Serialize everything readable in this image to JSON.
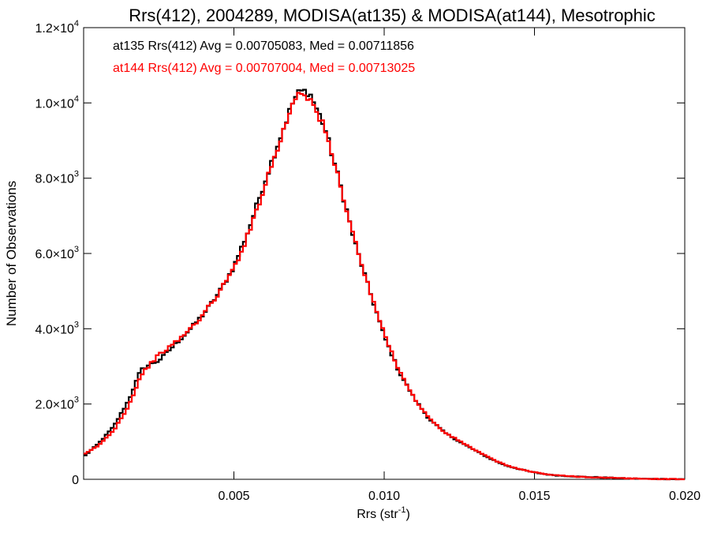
{
  "chart_data": {
    "type": "line",
    "title": "Rrs(412), 2004289, MODISA(at135) & MODISA(at144), Mesotrophic",
    "xlabel": "Rrs (str",
    "xlabel_sup": "-1",
    "xlabel_end": ")",
    "ylabel": "Number of Observations",
    "xlim": [
      0.0,
      0.02
    ],
    "ylim": [
      0,
      12000
    ],
    "grid": false,
    "x_ticks": [
      {
        "value": 0.005,
        "label": "0.005"
      },
      {
        "value": 0.01,
        "label": "0.010"
      },
      {
        "value": 0.015,
        "label": "0.015"
      },
      {
        "value": 0.02,
        "label": "0.020"
      }
    ],
    "y_ticks": [
      {
        "value": 0,
        "mant": "0",
        "exp": ""
      },
      {
        "value": 2000,
        "mant": "2.0×10",
        "exp": "3"
      },
      {
        "value": 4000,
        "mant": "4.0×10",
        "exp": "3"
      },
      {
        "value": 6000,
        "mant": "6.0×10",
        "exp": "3"
      },
      {
        "value": 8000,
        "mant": "8.0×10",
        "exp": "3"
      },
      {
        "value": 10000,
        "mant": "1.0×10",
        "exp": "4"
      },
      {
        "value": 12000,
        "mant": "1.2×10",
        "exp": "4"
      }
    ],
    "annotations": [
      {
        "text": "at135 Rrs(412) Avg = 0.00705083, Med = 0.00711856",
        "color": "#000000"
      },
      {
        "text": "at144 Rrs(412) Avg = 0.00707004, Med = 0.00713025",
        "color": "#ff0000"
      }
    ],
    "series": [
      {
        "color": "#000000",
        "style": "histogram-step",
        "x": [
          0.0,
          0.0005,
          0.001,
          0.0015,
          0.0019,
          0.0022,
          0.0025,
          0.003,
          0.0035,
          0.004,
          0.0045,
          0.005,
          0.0055,
          0.006,
          0.0065,
          0.007,
          0.0072,
          0.0075,
          0.008,
          0.0085,
          0.009,
          0.0095,
          0.01,
          0.0105,
          0.011,
          0.0115,
          0.012,
          0.0125,
          0.013,
          0.0135,
          0.014,
          0.0145,
          0.015,
          0.0155,
          0.016,
          0.0165,
          0.017,
          0.0175,
          0.018,
          0.0185,
          0.019,
          0.0195,
          0.02
        ],
        "y": [
          600,
          950,
          1400,
          2100,
          2900,
          3050,
          3150,
          3550,
          3950,
          4400,
          4950,
          5650,
          6650,
          7850,
          9000,
          10100,
          10300,
          10300,
          9400,
          7950,
          6350,
          5050,
          3800,
          2850,
          2150,
          1600,
          1250,
          1000,
          780,
          560,
          380,
          270,
          180,
          120,
          90,
          70,
          55,
          40,
          25,
          15,
          10,
          5,
          0
        ]
      },
      {
        "color": "#ff0000",
        "style": "histogram-step",
        "x": [
          0.0,
          0.0005,
          0.001,
          0.0015,
          0.0019,
          0.0022,
          0.0025,
          0.003,
          0.0035,
          0.004,
          0.0045,
          0.005,
          0.0055,
          0.006,
          0.0065,
          0.007,
          0.0072,
          0.0075,
          0.008,
          0.0085,
          0.009,
          0.0095,
          0.01,
          0.0105,
          0.011,
          0.0115,
          0.012,
          0.0125,
          0.013,
          0.0135,
          0.014,
          0.0145,
          0.015,
          0.0155,
          0.016,
          0.0165,
          0.017,
          0.0175,
          0.018,
          0.0185,
          0.019,
          0.0195,
          0.02
        ],
        "y": [
          650,
          900,
          1300,
          1950,
          2750,
          3050,
          3300,
          3600,
          3950,
          4400,
          4950,
          5600,
          6550,
          7750,
          8900,
          10100,
          10350,
          10150,
          9350,
          7950,
          6400,
          5050,
          3850,
          2900,
          2150,
          1620,
          1250,
          1020,
          790,
          570,
          390,
          270,
          185,
          125,
          90,
          68,
          52,
          38,
          25,
          15,
          10,
          5,
          0
        ]
      }
    ]
  }
}
